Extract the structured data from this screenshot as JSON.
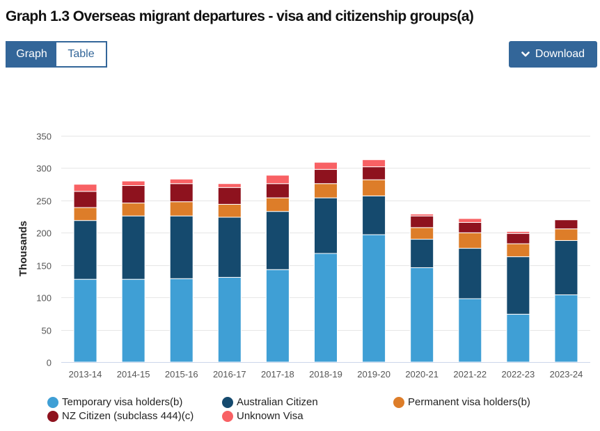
{
  "header": {
    "title": "Graph 1.3 Overseas migrant departures - visa and citizenship groups(a)"
  },
  "toggle": {
    "graph_label": "Graph",
    "table_label": "Table",
    "active": "Graph"
  },
  "download": {
    "label": "Download",
    "icon": "chevron-down-icon"
  },
  "colors": {
    "accent": "#336699",
    "temporary": "#3f9fd5",
    "australian": "#154a6e",
    "permanent": "#dd7d29",
    "nz": "#8e121e",
    "unknown": "#f86164"
  },
  "chart_data": {
    "type": "bar",
    "stacked": true,
    "title": "Graph 1.3 Overseas migrant departures - visa and citizenship groups(a)",
    "xlabel": "",
    "ylabel": "Thousands",
    "ylim": [
      0,
      350
    ],
    "yticks": [
      0,
      50,
      100,
      150,
      200,
      250,
      300,
      350
    ],
    "grid": true,
    "legend_position": "bottom",
    "categories": [
      "2013-14",
      "2014-15",
      "2015-16",
      "2016-17",
      "2017-18",
      "2018-19",
      "2019-20",
      "2020-21",
      "2021-22",
      "2022-23",
      "2023-24"
    ],
    "series": [
      {
        "name": "Temporary visa holders(b)",
        "color": "#3f9fd5",
        "values": [
          128,
          128,
          129,
          131,
          143,
          168,
          197,
          146,
          98,
          74,
          104
        ]
      },
      {
        "name": "Australian Citizen",
        "color": "#154a6e",
        "values": [
          91,
          98,
          97,
          93,
          90,
          86,
          60,
          44,
          78,
          89,
          84
        ]
      },
      {
        "name": "Permanent visa holders(b)",
        "color": "#dd7d29",
        "values": [
          20,
          20,
          22,
          20,
          21,
          22,
          25,
          18,
          24,
          20,
          18
        ]
      },
      {
        "name": "NZ Citizen (subclass 444)(c)",
        "color": "#8e121e",
        "values": [
          25,
          27,
          28,
          26,
          22,
          22,
          20,
          18,
          16,
          16,
          14
        ]
      },
      {
        "name": "Unknown Visa",
        "color": "#f86164",
        "values": [
          11,
          7,
          7,
          6,
          13,
          11,
          11,
          3,
          6,
          3,
          0
        ]
      }
    ]
  }
}
